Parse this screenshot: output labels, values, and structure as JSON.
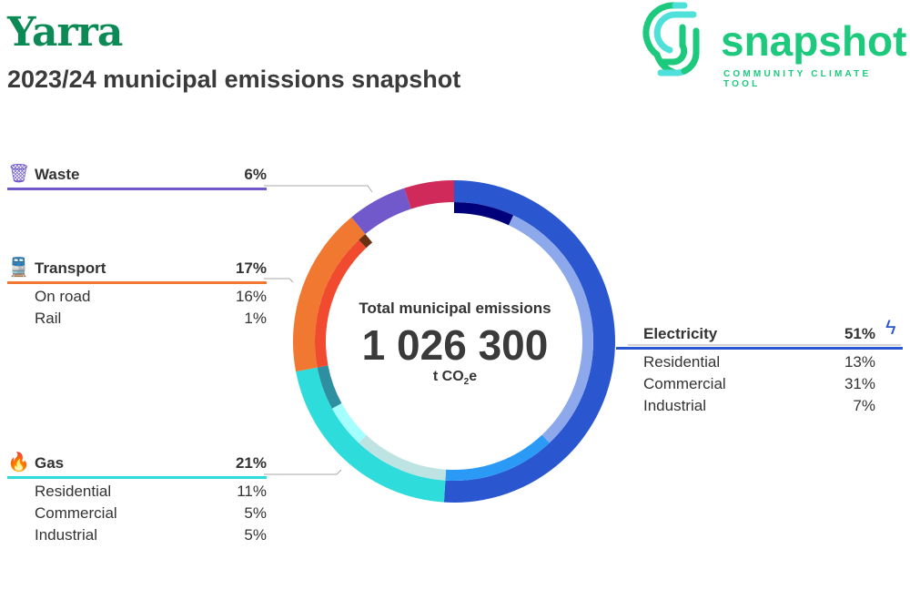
{
  "header": {
    "title": "Yarra",
    "subtitle": "2023/24 municipal emissions snapshot"
  },
  "logo": {
    "word": "snapshot",
    "tagline": "COMMUNITY CLIMATE TOOL"
  },
  "center": {
    "label": "Total municipal emissions",
    "value": "1 026 300",
    "unit_prefix": "t CO",
    "unit_sub": "2",
    "unit_suffix": "e"
  },
  "chart_data": {
    "type": "pie",
    "title": "Total municipal emissions",
    "total": 1026300,
    "unit": "t CO2e",
    "series": [
      {
        "name": "Electricity",
        "value": 51,
        "color": "#2a57d0",
        "icon": "lightning-icon",
        "breakdown": [
          {
            "name": "Industrial",
            "value": 7,
            "color": "#00007a"
          },
          {
            "name": "Commercial",
            "value": 31,
            "color": "#8ea8ec"
          },
          {
            "name": "Residential",
            "value": 13,
            "color": "#2b9af7"
          }
        ]
      },
      {
        "name": "Gas",
        "value": 21,
        "color": "#2edcdc",
        "icon": "flame-icon",
        "breakdown": [
          {
            "name": "Residential",
            "value": 11,
            "color": "#bde3e3"
          },
          {
            "name": "Commercial",
            "value": 5,
            "color": "#a6ffff"
          },
          {
            "name": "Industrial",
            "value": 5,
            "color": "#2e8fa0"
          }
        ]
      },
      {
        "name": "Transport",
        "value": 17,
        "color": "#f07830",
        "icon": "train-icon",
        "breakdown": [
          {
            "name": "On road",
            "value": 16,
            "color": "#f04a2f"
          },
          {
            "name": "Rail",
            "value": 1,
            "color": "#6b3010"
          }
        ]
      },
      {
        "name": "Waste",
        "value": 6,
        "color": "#7159cc",
        "icon": "trash-icon",
        "breakdown": []
      },
      {
        "name": "",
        "value": 5,
        "color": "#cf2a5a",
        "breakdown": []
      }
    ]
  },
  "labels": {
    "waste": {
      "name": "Waste",
      "pct": "6%"
    },
    "transport": {
      "name": "Transport",
      "pct": "17%",
      "rows": [
        {
          "name": "On road",
          "pct": "16%"
        },
        {
          "name": "Rail",
          "pct": "1%"
        }
      ]
    },
    "gas": {
      "name": "Gas",
      "pct": "21%",
      "rows": [
        {
          "name": "Residential",
          "pct": "11%"
        },
        {
          "name": "Commercial",
          "pct": "5%"
        },
        {
          "name": "Industrial",
          "pct": "5%"
        }
      ]
    },
    "electricity": {
      "name": "Electricity",
      "pct": "51%",
      "rows": [
        {
          "name": "Residential",
          "pct": "13%"
        },
        {
          "name": "Commercial",
          "pct": "31%"
        },
        {
          "name": "Industrial",
          "pct": "7%"
        }
      ]
    }
  }
}
